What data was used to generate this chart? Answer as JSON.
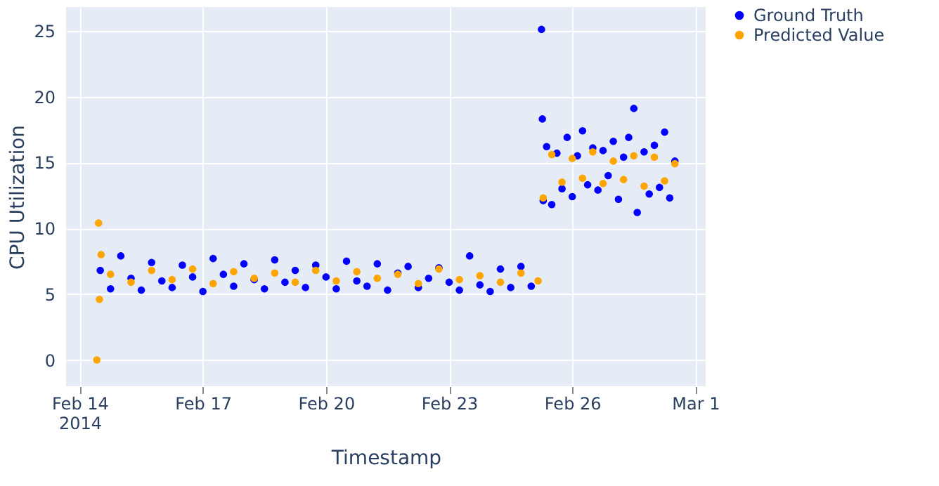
{
  "chart_data": {
    "type": "scatter",
    "xlabel": "Timestamp",
    "ylabel": "CPU Utilization",
    "legend": "top right",
    "grid": true,
    "marker": "circle",
    "xlim": [
      "2014-02-13T16:00",
      "2014-03-01T06:00"
    ],
    "xticks": [
      {
        "value": "2014-02-14",
        "label": "Feb 14\n2014"
      },
      {
        "value": "2014-02-17",
        "label": "Feb 17"
      },
      {
        "value": "2014-02-20",
        "label": "Feb 20"
      },
      {
        "value": "2014-02-23",
        "label": "Feb 23"
      },
      {
        "value": "2014-02-26",
        "label": "Feb 26"
      },
      {
        "value": "2014-03-01",
        "label": "Mar 1"
      }
    ],
    "ylim": [
      -2,
      26.8
    ],
    "yticks": [
      0,
      5,
      10,
      15,
      20,
      25
    ],
    "series": [
      {
        "name": "Ground Truth",
        "color": "#0000ff",
        "x": [
          "2014-02-14T12:00",
          "2014-02-14T18:00",
          "2014-02-15T00:00",
          "2014-02-15T06:00",
          "2014-02-15T12:00",
          "2014-02-15T18:00",
          "2014-02-16T00:00",
          "2014-02-16T06:00",
          "2014-02-16T12:00",
          "2014-02-16T18:00",
          "2014-02-17T00:00",
          "2014-02-17T06:00",
          "2014-02-17T12:00",
          "2014-02-17T18:00",
          "2014-02-18T00:00",
          "2014-02-18T06:00",
          "2014-02-18T12:00",
          "2014-02-18T18:00",
          "2014-02-19T00:00",
          "2014-02-19T06:00",
          "2014-02-19T12:00",
          "2014-02-19T18:00",
          "2014-02-20T00:00",
          "2014-02-20T06:00",
          "2014-02-20T12:00",
          "2014-02-20T18:00",
          "2014-02-21T00:00",
          "2014-02-21T06:00",
          "2014-02-21T12:00",
          "2014-02-21T18:00",
          "2014-02-22T00:00",
          "2014-02-22T06:00",
          "2014-02-22T12:00",
          "2014-02-22T18:00",
          "2014-02-23T00:00",
          "2014-02-23T06:00",
          "2014-02-23T12:00",
          "2014-02-23T18:00",
          "2014-02-24T00:00",
          "2014-02-24T06:00",
          "2014-02-24T12:00",
          "2014-02-24T18:00",
          "2014-02-25T00:00",
          "2014-02-25T06:00",
          "2014-02-25T06:30",
          "2014-02-25T07:00",
          "2014-02-25T09:00",
          "2014-02-25T12:00",
          "2014-02-25T15:00",
          "2014-02-25T18:00",
          "2014-02-25T21:00",
          "2014-02-26T00:00",
          "2014-02-26T03:00",
          "2014-02-26T06:00",
          "2014-02-26T09:00",
          "2014-02-26T12:00",
          "2014-02-26T15:00",
          "2014-02-26T18:00",
          "2014-02-26T21:00",
          "2014-02-27T00:00",
          "2014-02-27T03:00",
          "2014-02-27T06:00",
          "2014-02-27T09:00",
          "2014-02-27T12:00",
          "2014-02-27T14:00",
          "2014-02-27T18:00",
          "2014-02-27T21:00",
          "2014-02-28T00:00",
          "2014-02-28T03:00",
          "2014-02-28T06:00",
          "2014-02-28T09:00",
          "2014-02-28T12:00"
        ],
        "values": [
          6.8,
          5.4,
          7.9,
          6.2,
          5.3,
          7.4,
          6.0,
          5.5,
          7.2,
          6.3,
          5.2,
          7.7,
          6.5,
          5.6,
          7.3,
          6.1,
          5.4,
          7.6,
          5.9,
          6.8,
          5.5,
          7.2,
          6.3,
          5.4,
          7.5,
          6.0,
          5.6,
          7.3,
          5.3,
          6.6,
          7.1,
          5.5,
          6.2,
          7.0,
          5.9,
          5.3,
          7.9,
          5.7,
          5.2,
          6.9,
          5.5,
          7.1,
          5.6,
          25.1,
          18.3,
          12.1,
          16.2,
          11.8,
          15.7,
          13.0,
          16.9,
          12.4,
          15.5,
          17.4,
          13.3,
          16.1,
          12.9,
          15.9,
          14.0,
          16.6,
          12.2,
          15.4,
          16.9,
          19.1,
          11.2,
          15.8,
          12.6,
          16.3,
          13.1,
          17.3,
          12.3,
          15.1
        ]
      },
      {
        "name": "Predicted Value",
        "color": "#ffa500",
        "x": [
          "2014-02-14T10:00",
          "2014-02-14T11:00",
          "2014-02-14T11:30",
          "2014-02-14T12:30",
          "2014-02-14T18:00",
          "2014-02-15T06:00",
          "2014-02-15T18:00",
          "2014-02-16T06:00",
          "2014-02-16T18:00",
          "2014-02-17T06:00",
          "2014-02-17T18:00",
          "2014-02-18T06:00",
          "2014-02-18T18:00",
          "2014-02-19T06:00",
          "2014-02-19T18:00",
          "2014-02-20T06:00",
          "2014-02-20T18:00",
          "2014-02-21T06:00",
          "2014-02-21T18:00",
          "2014-02-22T06:00",
          "2014-02-22T18:00",
          "2014-02-23T06:00",
          "2014-02-23T18:00",
          "2014-02-24T06:00",
          "2014-02-24T18:00",
          "2014-02-25T04:00",
          "2014-02-25T07:00",
          "2014-02-25T12:00",
          "2014-02-25T18:00",
          "2014-02-26T00:00",
          "2014-02-26T06:00",
          "2014-02-26T12:00",
          "2014-02-26T18:00",
          "2014-02-27T00:00",
          "2014-02-27T06:00",
          "2014-02-27T12:00",
          "2014-02-27T18:00",
          "2014-02-28T00:00",
          "2014-02-28T06:00",
          "2014-02-28T12:00"
        ],
        "values": [
          0.0,
          10.4,
          4.6,
          8.0,
          6.5,
          5.9,
          6.8,
          6.1,
          6.9,
          5.8,
          6.7,
          6.2,
          6.6,
          5.9,
          6.8,
          6.0,
          6.7,
          6.2,
          6.5,
          5.8,
          6.9,
          6.1,
          6.4,
          5.9,
          6.6,
          6.0,
          12.3,
          15.6,
          13.5,
          15.3,
          13.8,
          15.8,
          13.4,
          15.1,
          13.7,
          15.5,
          13.2,
          15.4,
          13.6,
          14.9
        ]
      }
    ]
  }
}
